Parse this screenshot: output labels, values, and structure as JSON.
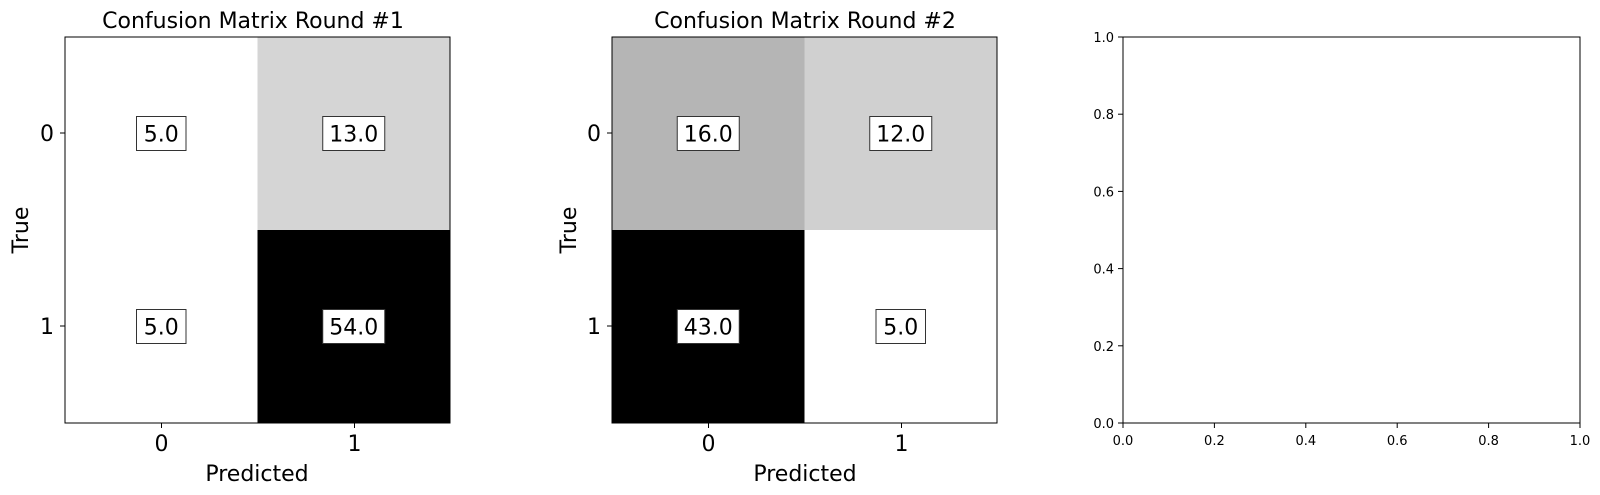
{
  "chart_data": [
    {
      "type": "heatmap",
      "title": "Confusion Matrix Round #1",
      "xlabel": "Predicted",
      "ylabel": "True",
      "x_tick_labels": [
        "0",
        "1"
      ],
      "y_tick_labels": [
        "0",
        "1"
      ],
      "colormap": "gray_r",
      "values": [
        [
          5.0,
          13.0
        ],
        [
          5.0,
          54.0
        ]
      ],
      "value_labels": [
        [
          "5.0",
          "13.0"
        ],
        [
          "5.0",
          "54.0"
        ]
      ]
    },
    {
      "type": "heatmap",
      "title": "Confusion Matrix Round #2",
      "xlabel": "Predicted",
      "ylabel": "True",
      "x_tick_labels": [
        "0",
        "1"
      ],
      "y_tick_labels": [
        "0",
        "1"
      ],
      "colormap": "gray_r",
      "values": [
        [
          16.0,
          12.0
        ],
        [
          43.0,
          5.0
        ]
      ],
      "value_labels": [
        [
          "16.0",
          "12.0"
        ],
        [
          "43.0",
          "5.0"
        ]
      ]
    },
    {
      "type": "scatter",
      "title": "",
      "xlabel": "",
      "ylabel": "",
      "xlim": [
        0.0,
        1.0
      ],
      "ylim": [
        0.0,
        1.0
      ],
      "x_tick_labels": [
        "0.0",
        "0.2",
        "0.4",
        "0.6",
        "0.8",
        "1.0"
      ],
      "y_tick_labels": [
        "0.0",
        "0.2",
        "0.4",
        "0.6",
        "0.8",
        "1.0"
      ],
      "series": []
    }
  ]
}
